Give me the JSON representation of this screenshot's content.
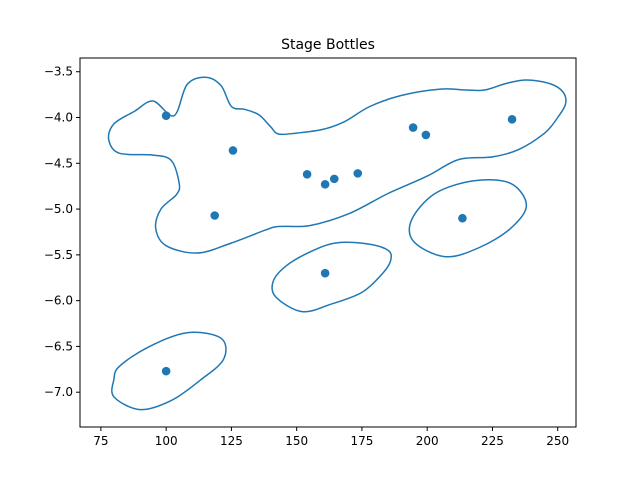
{
  "chart_data": {
    "type": "scatter",
    "title": "Stage Bottles",
    "xlabel": "",
    "ylabel": "",
    "xlim": [
      67,
      257
    ],
    "ylim": [
      -7.38,
      -3.35
    ],
    "grid": false,
    "color": "#1f77b4",
    "xticks": [
      75,
      100,
      125,
      150,
      175,
      200,
      225,
      250
    ],
    "yticks": [
      -3.5,
      -4.0,
      -4.5,
      -5.0,
      -5.5,
      -6.0,
      -6.5,
      -7.0
    ],
    "ytick_labels": [
      "−3.5",
      "−4.0",
      "−4.5",
      "−5.0",
      "−5.5",
      "−6.0",
      "−6.5",
      "−7.0"
    ],
    "points": [
      {
        "x": 100.0,
        "y": -3.98
      },
      {
        "x": 125.6,
        "y": -4.36
      },
      {
        "x": 118.6,
        "y": -5.07
      },
      {
        "x": 154.0,
        "y": -4.62
      },
      {
        "x": 160.9,
        "y": -4.73
      },
      {
        "x": 164.4,
        "y": -4.67
      },
      {
        "x": 173.4,
        "y": -4.61
      },
      {
        "x": 194.6,
        "y": -4.11
      },
      {
        "x": 199.5,
        "y": -4.19
      },
      {
        "x": 232.5,
        "y": -4.02
      },
      {
        "x": 213.5,
        "y": -5.1
      },
      {
        "x": 160.9,
        "y": -5.7
      },
      {
        "x": 100.0,
        "y": -6.77
      }
    ],
    "contours": [
      [
        [
          103.0,
          -3.98
        ],
        [
          108.0,
          -3.64
        ],
        [
          115.0,
          -3.56
        ],
        [
          121.0,
          -3.65
        ],
        [
          125.0,
          -3.88
        ],
        [
          130.0,
          -3.91
        ],
        [
          135.5,
          -3.97
        ],
        [
          140.0,
          -4.1
        ],
        [
          143.0,
          -4.18
        ],
        [
          150.0,
          -4.17
        ],
        [
          160.0,
          -4.13
        ],
        [
          168.0,
          -4.05
        ],
        [
          178.0,
          -3.88
        ],
        [
          190.0,
          -3.76
        ],
        [
          205.0,
          -3.69
        ],
        [
          215.0,
          -3.7
        ],
        [
          222.0,
          -3.7
        ],
        [
          230.0,
          -3.63
        ],
        [
          238.0,
          -3.59
        ],
        [
          247.0,
          -3.63
        ],
        [
          252.0,
          -3.72
        ],
        [
          253.0,
          -3.85
        ],
        [
          250.0,
          -4.0
        ],
        [
          245.0,
          -4.17
        ],
        [
          235.0,
          -4.35
        ],
        [
          225.0,
          -4.43
        ],
        [
          212.0,
          -4.46
        ],
        [
          200.0,
          -4.64
        ],
        [
          185.0,
          -4.83
        ],
        [
          170.0,
          -5.05
        ],
        [
          155.0,
          -5.18
        ],
        [
          143.0,
          -5.19
        ],
        [
          138.0,
          -5.23
        ],
        [
          125.0,
          -5.37
        ],
        [
          112.0,
          -5.48
        ],
        [
          100.0,
          -5.4
        ],
        [
          96.0,
          -5.21
        ],
        [
          98.0,
          -5.0
        ],
        [
          104.0,
          -4.84
        ],
        [
          105.0,
          -4.72
        ],
        [
          102.0,
          -4.47
        ],
        [
          95.0,
          -4.41
        ],
        [
          82.0,
          -4.39
        ],
        [
          78.0,
          -4.24
        ],
        [
          80.0,
          -4.07
        ],
        [
          88.0,
          -3.93
        ],
        [
          95.0,
          -3.82
        ],
        [
          103.0,
          -3.98
        ]
      ],
      [
        [
          141.0,
          -5.79
        ],
        [
          142.0,
          -5.96
        ],
        [
          152.0,
          -6.12
        ],
        [
          163.0,
          -6.04
        ],
        [
          175.0,
          -5.91
        ],
        [
          183.0,
          -5.7
        ],
        [
          186.0,
          -5.56
        ],
        [
          185.0,
          -5.45
        ],
        [
          177.0,
          -5.38
        ],
        [
          165.0,
          -5.37
        ],
        [
          155.0,
          -5.47
        ],
        [
          146.0,
          -5.62
        ],
        [
          141.0,
          -5.79
        ]
      ],
      [
        [
          194.0,
          -5.12
        ],
        [
          195.0,
          -5.36
        ],
        [
          207.0,
          -5.52
        ],
        [
          220.0,
          -5.42
        ],
        [
          232.0,
          -5.21
        ],
        [
          238.0,
          -4.96
        ],
        [
          232.0,
          -4.72
        ],
        [
          218.0,
          -4.69
        ],
        [
          203.0,
          -4.83
        ],
        [
          194.0,
          -5.12
        ]
      ],
      [
        [
          80.0,
          -6.86
        ],
        [
          80.0,
          -7.05
        ],
        [
          90.0,
          -7.19
        ],
        [
          102.0,
          -7.09
        ],
        [
          113.0,
          -6.87
        ],
        [
          122.0,
          -6.64
        ],
        [
          121.0,
          -6.41
        ],
        [
          108.0,
          -6.35
        ],
        [
          93.0,
          -6.51
        ],
        [
          82.0,
          -6.72
        ],
        [
          80.0,
          -6.86
        ]
      ]
    ]
  }
}
